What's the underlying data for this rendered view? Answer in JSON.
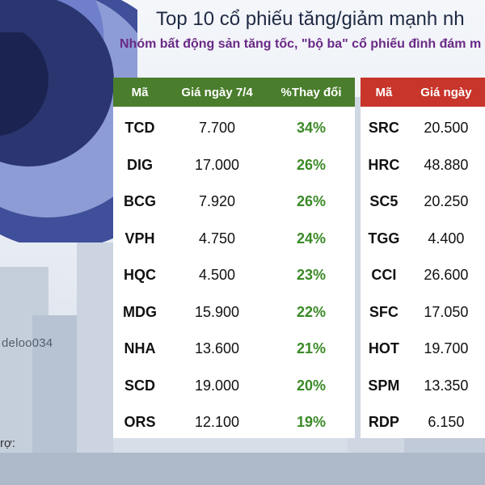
{
  "title": "Top 10 cổ phiếu tăng/giảm mạnh nh",
  "subtitle": "Nhóm bất động sản tăng tốc, \"bộ ba\" cổ phiếu đình đám m",
  "watermark": "deloo034",
  "sponsor": "rợ:",
  "colors": {
    "gainers_header": "#4a7d2c",
    "losers_header": "#c8352b",
    "change_text": "#3a8a26",
    "title_text": "#1f2a44",
    "subtitle_text": "#6a2a86"
  },
  "gainers": {
    "headers": {
      "code": "Mã",
      "price": "Giá ngày 7/4",
      "change": "%Thay đổi"
    },
    "rows": [
      {
        "code": "TCD",
        "price": "7.700",
        "change": "34%"
      },
      {
        "code": "DIG",
        "price": "17.000",
        "change": "26%"
      },
      {
        "code": "BCG",
        "price": "7.920",
        "change": "26%"
      },
      {
        "code": "VPH",
        "price": "4.750",
        "change": "24%"
      },
      {
        "code": "HQC",
        "price": "4.500",
        "change": "23%"
      },
      {
        "code": "MDG",
        "price": "15.900",
        "change": "22%"
      },
      {
        "code": "NHA",
        "price": "13.600",
        "change": "21%"
      },
      {
        "code": "SCD",
        "price": "19.000",
        "change": "20%"
      },
      {
        "code": "ORS",
        "price": "12.100",
        "change": "19%"
      }
    ]
  },
  "losers": {
    "headers": {
      "code": "Mã",
      "price": "Giá ngày"
    },
    "rows": [
      {
        "code": "SRC",
        "price": "20.500"
      },
      {
        "code": "HRC",
        "price": "48.880"
      },
      {
        "code": "SC5",
        "price": "20.250"
      },
      {
        "code": "TGG",
        "price": "4.400"
      },
      {
        "code": "CCI",
        "price": "26.600"
      },
      {
        "code": "SFC",
        "price": "17.050"
      },
      {
        "code": "HOT",
        "price": "19.700"
      },
      {
        "code": "SPM",
        "price": "13.350"
      },
      {
        "code": "RDP",
        "price": "6.150"
      }
    ]
  }
}
